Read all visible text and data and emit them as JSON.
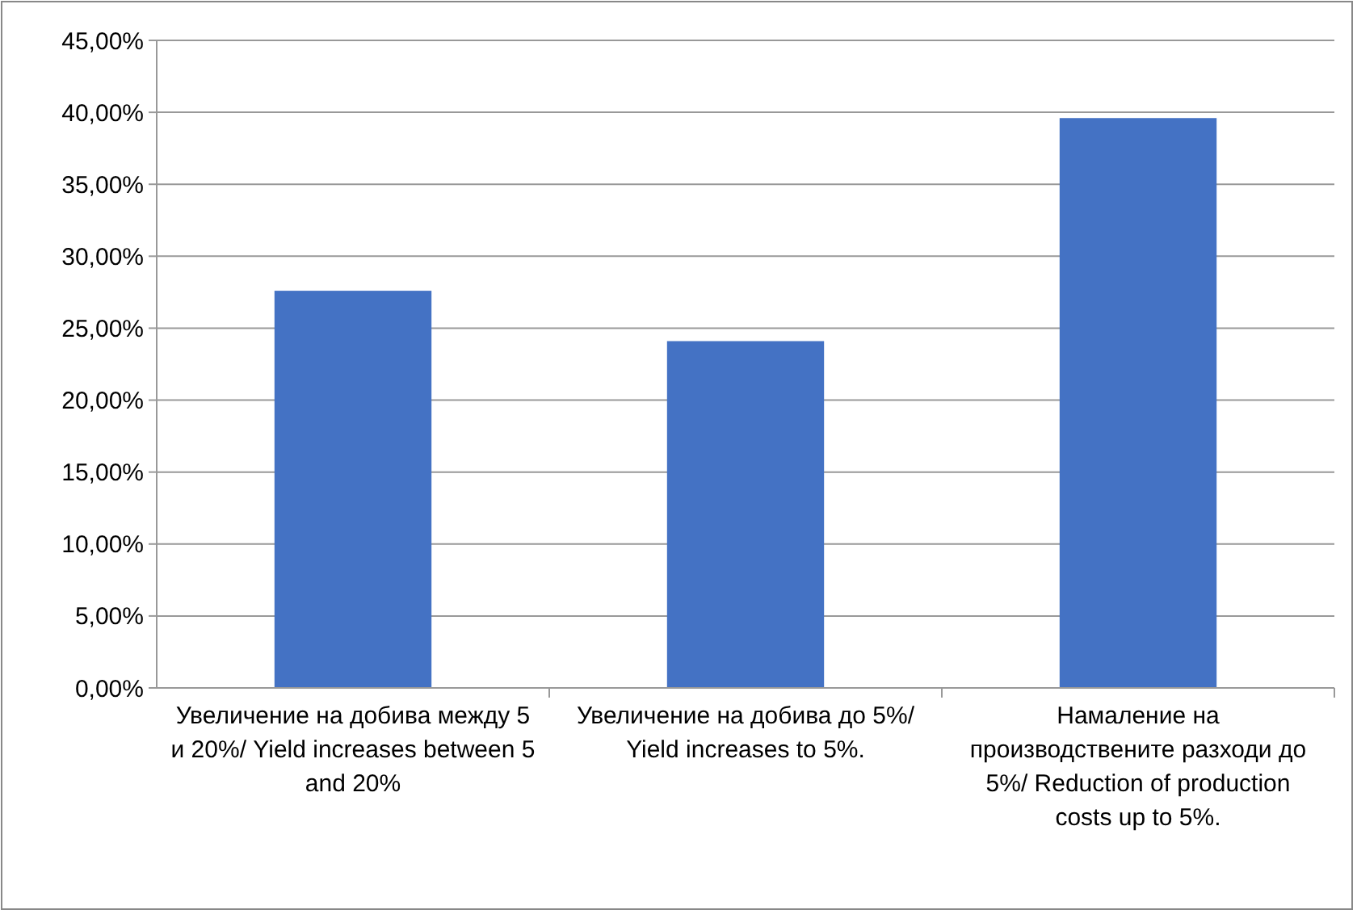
{
  "chart_data": {
    "type": "bar",
    "categories": [
      "Увеличение на добива между 5 и 20%/ Yield increases between 5 and 20%",
      "Увеличение на добива до 5%/ Yield increases to 5%.",
      "Намаление на производствените разходи до 5%/ Reduction of production costs up to 5%."
    ],
    "values": [
      27.6,
      24.1,
      39.6
    ],
    "color": "#4472c4",
    "ylim": [
      0,
      45
    ],
    "yticks": [
      {
        "value": 0,
        "label": "0,00%"
      },
      {
        "value": 5,
        "label": "5,00%"
      },
      {
        "value": 10,
        "label": "10,00%"
      },
      {
        "value": 15,
        "label": "15,00%"
      },
      {
        "value": 20,
        "label": "20,00%"
      },
      {
        "value": 25,
        "label": "25,00%"
      },
      {
        "value": 30,
        "label": "30,00%"
      },
      {
        "value": 35,
        "label": "35,00%"
      },
      {
        "value": 40,
        "label": "40,00%"
      },
      {
        "value": 45,
        "label": "45,00%"
      }
    ],
    "grid": "y"
  }
}
